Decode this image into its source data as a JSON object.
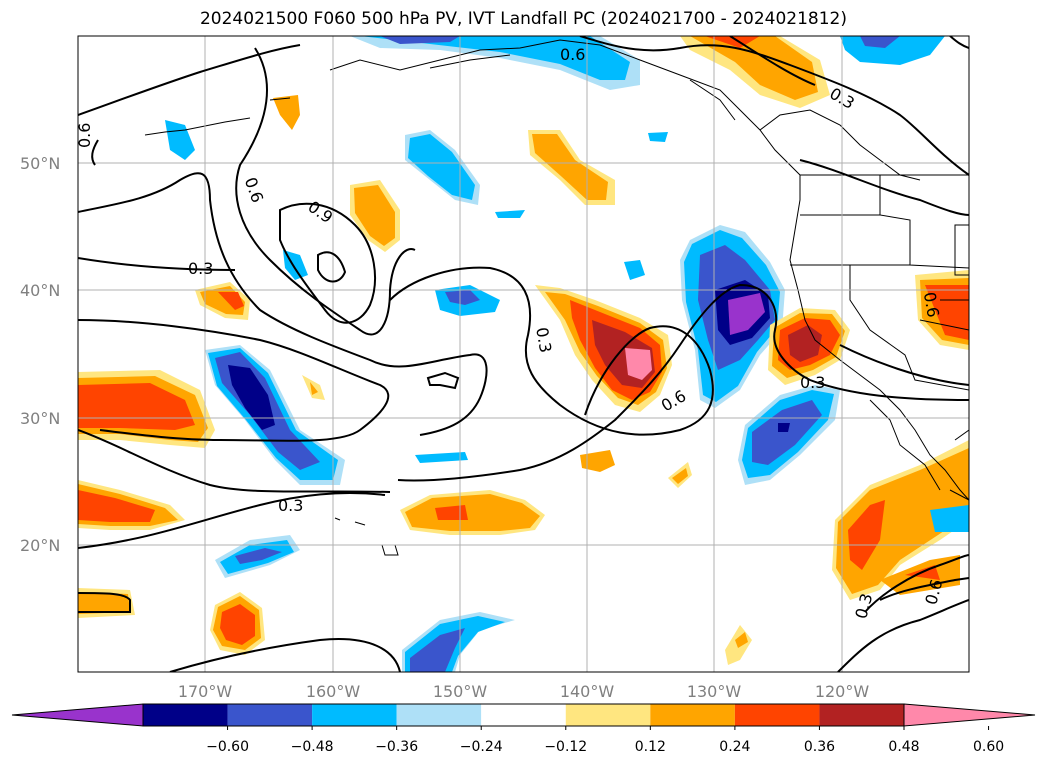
{
  "title": "2024021500 F060 500 hPa PV, IVT Landfall PC (2024021700 - 2024021812)",
  "lat_labels": [
    "50°N",
    "40°N",
    "30°N",
    "20°N"
  ],
  "lon_labels": [
    "170°W",
    "160°W",
    "150°W",
    "140°W",
    "130°W",
    "120°W"
  ],
  "contour_labels": [
    "0.6",
    "0.3",
    "0.9",
    "0.6",
    "0.6",
    "0.3",
    "0.3",
    "0.3",
    "0.6",
    "0.3",
    "0.6",
    "0.3",
    "0.9",
    "0.6"
  ],
  "colorbar": {
    "ticks": [
      "−0.60",
      "−0.48",
      "−0.36",
      "−0.24",
      "−0.12",
      "0.12",
      "0.24",
      "0.36",
      "0.48",
      "0.60"
    ],
    "colors": [
      "#9933cc",
      "#000088",
      "#3a55cc",
      "#00bbff",
      "#aee0f7",
      "#ffffff",
      "#ffe680",
      "#ffa500",
      "#ff4400",
      "#b22222",
      "#ff88aa"
    ]
  },
  "palette": {
    "purple": "#9933cc",
    "navy": "#000088",
    "blue": "#3a55cc",
    "cyan": "#00bbff",
    "lightblue": "#aee0f7",
    "yellow": "#ffe680",
    "orange": "#ffa500",
    "redorange": "#ff4400",
    "darkred": "#b22222",
    "pink": "#ff88aa"
  }
}
